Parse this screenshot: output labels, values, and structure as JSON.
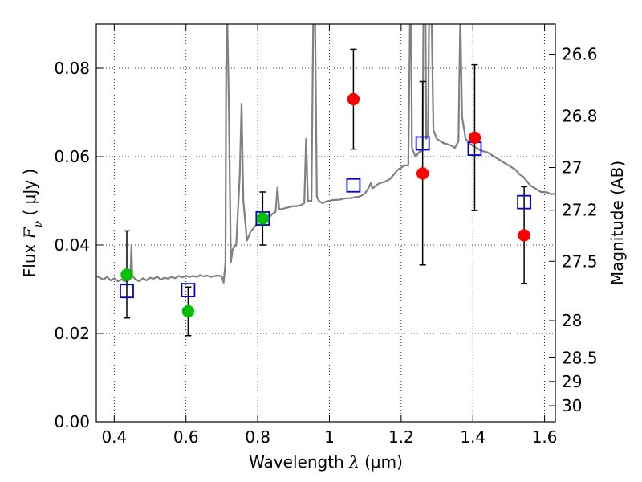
{
  "chart_data": {
    "type": "scatter",
    "xlabel": {
      "text": "Wavelength  ",
      "symbol": "λ",
      "unit": " (μm)"
    },
    "ylabel": {
      "text": "Flux  ",
      "symbol": "F",
      "sub": "ν",
      "unit": "  ( μJy )"
    },
    "y2label": "Magnitude (AB)",
    "xlim": [
      0.35,
      1.63
    ],
    "ylim": [
      0.0,
      0.09
    ],
    "grid": true,
    "grid_style": "dotted",
    "x_ticks": [
      {
        "value": 0.4,
        "label": "0.4"
      },
      {
        "value": 0.6,
        "label": "0.6"
      },
      {
        "value": 0.8,
        "label": "0.8"
      },
      {
        "value": 1.0,
        "label": "1"
      },
      {
        "value": 1.2,
        "label": "1.2"
      },
      {
        "value": 1.4,
        "label": "1.4"
      },
      {
        "value": 1.6,
        "label": "1.6"
      }
    ],
    "y_ticks": [
      {
        "value": 0.0,
        "label": "0.00"
      },
      {
        "value": 0.02,
        "label": "0.02"
      },
      {
        "value": 0.04,
        "label": "0.04"
      },
      {
        "value": 0.06,
        "label": "0.06"
      },
      {
        "value": 0.08,
        "label": "0.08"
      }
    ],
    "y2_ticks": [
      {
        "value": 26.6,
        "label": "26.6"
      },
      {
        "value": 26.8,
        "label": "26.8"
      },
      {
        "value": 27.0,
        "label": "27"
      },
      {
        "value": 27.2,
        "label": "27.2"
      },
      {
        "value": 27.5,
        "label": "27.5"
      },
      {
        "value": 28.0,
        "label": "28"
      },
      {
        "value": 28.5,
        "label": "28.5"
      },
      {
        "value": 29.0,
        "label": "29"
      },
      {
        "value": 30.0,
        "label": "30"
      }
    ],
    "model_spectrum": {
      "color": "#808080",
      "points": [
        [
          0.35,
          0.033
        ],
        [
          0.36,
          0.0326
        ],
        [
          0.37,
          0.0322
        ],
        [
          0.38,
          0.0328
        ],
        [
          0.39,
          0.032
        ],
        [
          0.4,
          0.0325
        ],
        [
          0.41,
          0.0318
        ],
        [
          0.42,
          0.0322
        ],
        [
          0.43,
          0.0318
        ],
        [
          0.44,
          0.032
        ],
        [
          0.445,
          0.033
        ],
        [
          0.448,
          0.04
        ],
        [
          0.45,
          0.033
        ],
        [
          0.46,
          0.0322
        ],
        [
          0.47,
          0.0318
        ],
        [
          0.48,
          0.0325
        ],
        [
          0.49,
          0.032
        ],
        [
          0.5,
          0.0326
        ],
        [
          0.51,
          0.0324
        ],
        [
          0.52,
          0.0328
        ],
        [
          0.53,
          0.0322
        ],
        [
          0.54,
          0.0326
        ],
        [
          0.55,
          0.0324
        ],
        [
          0.56,
          0.0328
        ],
        [
          0.57,
          0.0325
        ],
        [
          0.58,
          0.033
        ],
        [
          0.59,
          0.0327
        ],
        [
          0.6,
          0.033
        ],
        [
          0.61,
          0.0328
        ],
        [
          0.62,
          0.033
        ],
        [
          0.63,
          0.0328
        ],
        [
          0.64,
          0.0332
        ],
        [
          0.65,
          0.0329
        ],
        [
          0.66,
          0.0331
        ],
        [
          0.67,
          0.0328
        ],
        [
          0.68,
          0.033
        ],
        [
          0.69,
          0.0331
        ],
        [
          0.7,
          0.0329
        ],
        [
          0.705,
          0.0315
        ],
        [
          0.71,
          0.036
        ],
        [
          0.712,
          0.08
        ],
        [
          0.715,
          0.092
        ],
        [
          0.72,
          0.07
        ],
        [
          0.725,
          0.036
        ],
        [
          0.73,
          0.039
        ],
        [
          0.74,
          0.04
        ],
        [
          0.75,
          0.056
        ],
        [
          0.755,
          0.072
        ],
        [
          0.76,
          0.05
        ],
        [
          0.77,
          0.041
        ],
        [
          0.78,
          0.043
        ],
        [
          0.79,
          0.044
        ],
        [
          0.8,
          0.045
        ],
        [
          0.81,
          0.0455
        ],
        [
          0.82,
          0.0458
        ],
        [
          0.83,
          0.046
        ],
        [
          0.84,
          0.047
        ],
        [
          0.85,
          0.0475
        ],
        [
          0.855,
          0.053
        ],
        [
          0.86,
          0.048
        ],
        [
          0.87,
          0.0482
        ],
        [
          0.88,
          0.0484
        ],
        [
          0.89,
          0.0486
        ],
        [
          0.9,
          0.0488
        ],
        [
          0.91,
          0.0488
        ],
        [
          0.92,
          0.049
        ],
        [
          0.93,
          0.0495
        ],
        [
          0.935,
          0.064
        ],
        [
          0.94,
          0.05
        ],
        [
          0.95,
          0.05
        ],
        [
          0.955,
          0.092
        ],
        [
          0.96,
          0.092
        ],
        [
          0.965,
          0.051
        ],
        [
          0.97,
          0.05
        ],
        [
          0.98,
          0.0495
        ],
        [
          0.99,
          0.0498
        ],
        [
          1.0,
          0.05
        ],
        [
          1.01,
          0.0502
        ],
        [
          1.02,
          0.0502
        ],
        [
          1.03,
          0.0503
        ],
        [
          1.04,
          0.0505
        ],
        [
          1.05,
          0.0506
        ],
        [
          1.06,
          0.0506
        ],
        [
          1.07,
          0.0508
        ],
        [
          1.08,
          0.0509
        ],
        [
          1.09,
          0.0512
        ],
        [
          1.1,
          0.0518
        ],
        [
          1.11,
          0.053
        ],
        [
          1.115,
          0.054
        ],
        [
          1.12,
          0.0528
        ],
        [
          1.13,
          0.0535
        ],
        [
          1.14,
          0.054
        ],
        [
          1.15,
          0.0542
        ],
        [
          1.16,
          0.0545
        ],
        [
          1.17,
          0.055
        ],
        [
          1.18,
          0.056
        ],
        [
          1.19,
          0.057
        ],
        [
          1.2,
          0.0575
        ],
        [
          1.21,
          0.058
        ],
        [
          1.22,
          0.058
        ],
        [
          1.225,
          0.092
        ],
        [
          1.228,
          0.092
        ],
        [
          1.23,
          0.062
        ],
        [
          1.24,
          0.06
        ],
        [
          1.25,
          0.061
        ],
        [
          1.26,
          0.0615
        ],
        [
          1.262,
          0.092
        ],
        [
          1.268,
          0.092
        ],
        [
          1.27,
          0.064
        ],
        [
          1.275,
          0.065
        ],
        [
          1.278,
          0.092
        ],
        [
          1.285,
          0.092
        ],
        [
          1.29,
          0.066
        ],
        [
          1.3,
          0.064
        ],
        [
          1.31,
          0.0635
        ],
        [
          1.32,
          0.063
        ],
        [
          1.33,
          0.0628
        ],
        [
          1.34,
          0.0625
        ],
        [
          1.35,
          0.062
        ],
        [
          1.36,
          0.0635
        ],
        [
          1.365,
          0.092
        ],
        [
          1.37,
          0.069
        ],
        [
          1.38,
          0.064
        ],
        [
          1.39,
          0.063
        ],
        [
          1.4,
          0.0625
        ],
        [
          1.41,
          0.062
        ],
        [
          1.42,
          0.0615
        ],
        [
          1.43,
          0.0612
        ],
        [
          1.44,
          0.061
        ],
        [
          1.45,
          0.0605
        ],
        [
          1.46,
          0.06
        ],
        [
          1.47,
          0.0595
        ],
        [
          1.48,
          0.059
        ],
        [
          1.49,
          0.0585
        ],
        [
          1.5,
          0.058
        ],
        [
          1.51,
          0.0575
        ],
        [
          1.52,
          0.057
        ],
        [
          1.53,
          0.056
        ],
        [
          1.54,
          0.0555
        ],
        [
          1.55,
          0.0545
        ],
        [
          1.56,
          0.0535
        ],
        [
          1.57,
          0.053
        ],
        [
          1.58,
          0.0525
        ],
        [
          1.59,
          0.052
        ],
        [
          1.6,
          0.052
        ],
        [
          1.61,
          0.0518
        ],
        [
          1.62,
          0.0515
        ],
        [
          1.63,
          0.0516
        ]
      ]
    },
    "model_photometry": {
      "marker": "open-square",
      "color": "#0000cc",
      "points": [
        {
          "x": 0.435,
          "y": 0.0296
        },
        {
          "x": 0.606,
          "y": 0.0298
        },
        {
          "x": 0.814,
          "y": 0.046
        },
        {
          "x": 1.067,
          "y": 0.0535
        },
        {
          "x": 1.26,
          "y": 0.063
        },
        {
          "x": 1.405,
          "y": 0.0618
        },
        {
          "x": 1.543,
          "y": 0.0497
        }
      ]
    },
    "detections_optical": {
      "marker": "filled-circle",
      "color": "#00c000",
      "points": [
        {
          "x": 0.435,
          "y": 0.0333,
          "yerr": [
            0.0235,
            0.0432
          ]
        },
        {
          "x": 0.606,
          "y": 0.025,
          "yerr": [
            0.0195,
            0.0305
          ]
        },
        {
          "x": 0.814,
          "y": 0.046,
          "yerr": [
            0.04,
            0.052
          ]
        }
      ]
    },
    "detections_nir": {
      "marker": "filled-circle",
      "color": "#ff0000",
      "points": [
        {
          "x": 1.067,
          "y": 0.073,
          "yerr": [
            0.0617,
            0.0843
          ]
        },
        {
          "x": 1.26,
          "y": 0.0562,
          "yerr": [
            0.0355,
            0.077
          ]
        },
        {
          "x": 1.405,
          "y": 0.0643,
          "yerr": [
            0.0478,
            0.0808
          ]
        },
        {
          "x": 1.543,
          "y": 0.0422,
          "yerr": [
            0.0313,
            0.0532
          ]
        }
      ]
    }
  }
}
